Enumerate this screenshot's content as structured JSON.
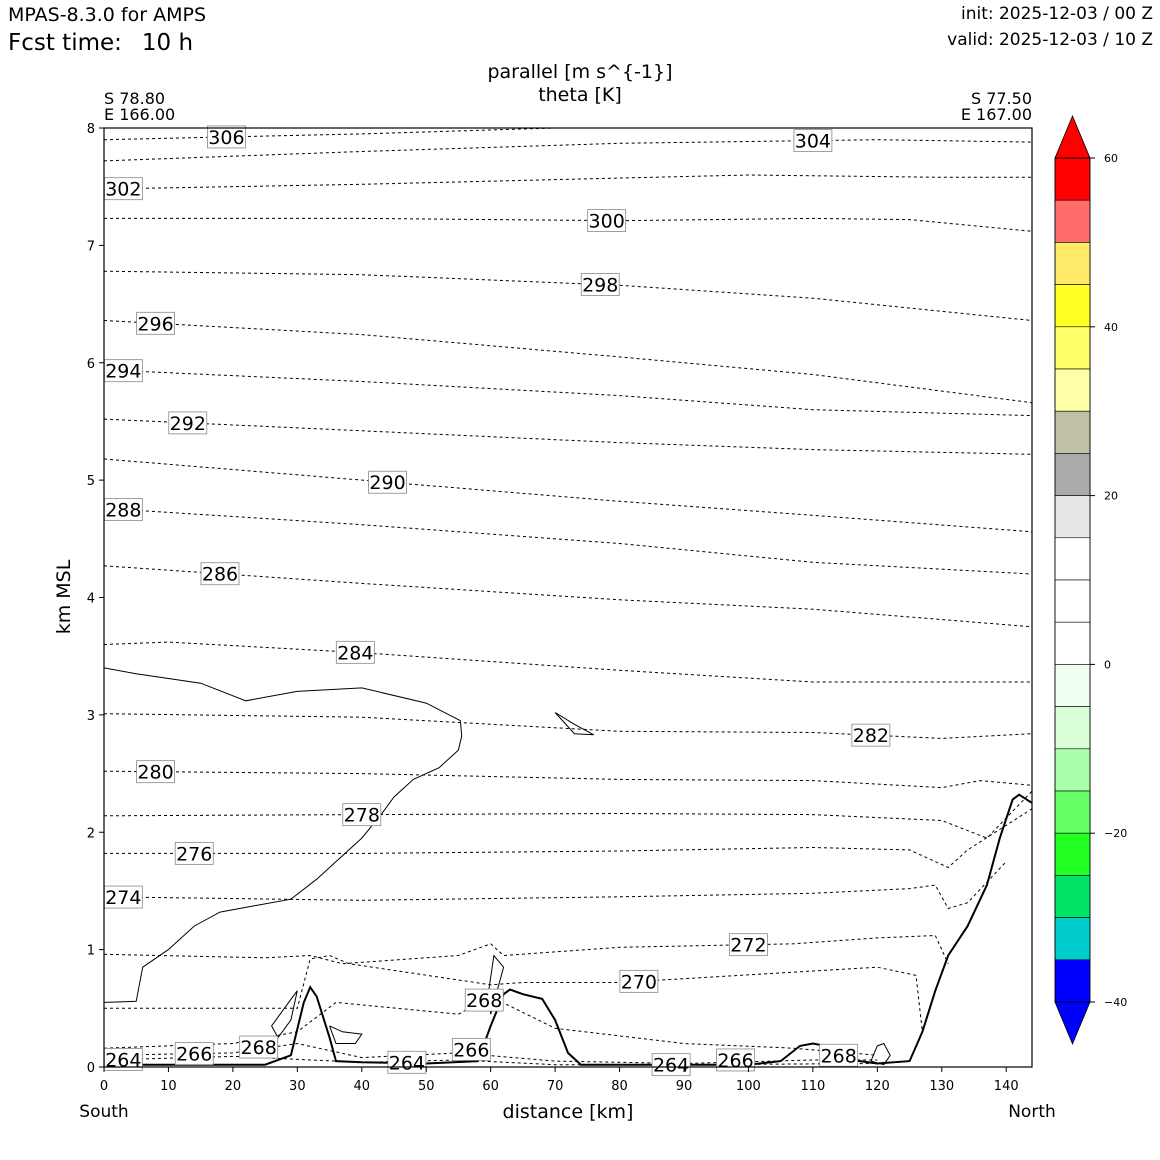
{
  "header": {
    "model": "MPAS-8.3.0 for AMPS",
    "fcst_label": "Fcst time:",
    "fcst_value": "10 h",
    "init": "init: 2025-12-03 / 00 Z",
    "valid": "valid: 2025-12-03 / 10 Z"
  },
  "chart_data": {
    "type": "contour-cross-section",
    "title": "parallel [m s^{-1}]",
    "subtitle": "theta [K]",
    "xlabel": "distance [km]",
    "ylabel": "km MSL",
    "xlim": [
      0,
      144
    ],
    "ylim": [
      0,
      8
    ],
    "x_ticks": [
      0,
      10,
      20,
      30,
      40,
      50,
      60,
      70,
      80,
      90,
      100,
      110,
      120,
      130,
      140
    ],
    "y_ticks": [
      0,
      1,
      2,
      3,
      4,
      5,
      6,
      7,
      8
    ],
    "left_end": {
      "lat": "S 78.80",
      "lon": "E 166.00",
      "direction": "South"
    },
    "right_end": {
      "lat": "S 77.50",
      "lon": "E 167.00",
      "direction": "North"
    },
    "theta_contours": [
      {
        "level": 306,
        "label_x": 19,
        "points": [
          [
            0,
            7.9
          ],
          [
            40,
            7.95
          ],
          [
            70,
            8.0
          ]
        ]
      },
      {
        "level": 304,
        "label_x": 110,
        "points": [
          [
            0,
            7.72
          ],
          [
            40,
            7.8
          ],
          [
            80,
            7.87
          ],
          [
            120,
            7.9
          ],
          [
            144,
            7.88
          ]
        ]
      },
      {
        "level": 302,
        "label_x": 3,
        "points": [
          [
            0,
            7.48
          ],
          [
            40,
            7.52
          ],
          [
            70,
            7.56
          ],
          [
            100,
            7.6
          ],
          [
            130,
            7.58
          ],
          [
            144,
            7.58
          ]
        ]
      },
      {
        "level": 300,
        "label_x": 78,
        "points": [
          [
            0,
            7.23
          ],
          [
            40,
            7.23
          ],
          [
            80,
            7.21
          ],
          [
            110,
            7.23
          ],
          [
            125,
            7.22
          ],
          [
            144,
            7.12
          ]
        ]
      },
      {
        "level": 298,
        "label_x": 77,
        "points": [
          [
            0,
            6.78
          ],
          [
            40,
            6.75
          ],
          [
            80,
            6.66
          ],
          [
            110,
            6.55
          ],
          [
            144,
            6.36
          ]
        ]
      },
      {
        "level": 296,
        "label_x": 8,
        "points": [
          [
            0,
            6.36
          ],
          [
            40,
            6.24
          ],
          [
            80,
            6.05
          ],
          [
            110,
            5.9
          ],
          [
            144,
            5.66
          ]
        ]
      },
      {
        "level": 294,
        "label_x": 3,
        "points": [
          [
            0,
            5.94
          ],
          [
            40,
            5.84
          ],
          [
            80,
            5.72
          ],
          [
            110,
            5.6
          ],
          [
            144,
            5.55
          ]
        ]
      },
      {
        "level": 292,
        "label_x": 13,
        "points": [
          [
            0,
            5.52
          ],
          [
            40,
            5.42
          ],
          [
            80,
            5.32
          ],
          [
            110,
            5.26
          ],
          [
            144,
            5.22
          ]
        ]
      },
      {
        "level": 290,
        "label_x": 44,
        "points": [
          [
            0,
            5.18
          ],
          [
            40,
            5.0
          ],
          [
            80,
            4.82
          ],
          [
            110,
            4.7
          ],
          [
            144,
            4.56
          ]
        ]
      },
      {
        "level": 288,
        "label_x": 3,
        "points": [
          [
            0,
            4.76
          ],
          [
            40,
            4.62
          ],
          [
            80,
            4.46
          ],
          [
            110,
            4.3
          ],
          [
            144,
            4.2
          ]
        ]
      },
      {
        "level": 286,
        "label_x": 18,
        "points": [
          [
            0,
            4.27
          ],
          [
            40,
            4.12
          ],
          [
            80,
            3.98
          ],
          [
            110,
            3.9
          ],
          [
            144,
            3.75
          ]
        ]
      },
      {
        "level": 284,
        "label_x": 39,
        "points": [
          [
            0,
            3.6
          ],
          [
            10,
            3.62
          ],
          [
            40,
            3.53
          ],
          [
            80,
            3.38
          ],
          [
            110,
            3.28
          ],
          [
            144,
            3.28
          ]
        ]
      },
      {
        "level": 282,
        "label_x": 119,
        "points": [
          [
            0,
            3.01
          ],
          [
            40,
            2.98
          ],
          [
            80,
            2.86
          ],
          [
            110,
            2.85
          ],
          [
            130,
            2.8
          ],
          [
            144,
            2.84
          ]
        ]
      },
      {
        "level": 280,
        "label_x": 8,
        "points": [
          [
            0,
            2.52
          ],
          [
            40,
            2.5
          ],
          [
            80,
            2.45
          ],
          [
            110,
            2.44
          ],
          [
            130,
            2.38
          ],
          [
            136,
            2.44
          ],
          [
            144,
            2.4
          ]
        ]
      },
      {
        "level": 278,
        "label_x": 40,
        "points": [
          [
            0,
            2.14
          ],
          [
            40,
            2.15
          ],
          [
            80,
            2.16
          ],
          [
            110,
            2.15
          ],
          [
            130,
            2.1
          ],
          [
            137,
            1.95
          ],
          [
            144,
            2.35
          ]
        ]
      },
      {
        "level": 276,
        "label_x": 14,
        "points": [
          [
            0,
            1.82
          ],
          [
            40,
            1.82
          ],
          [
            80,
            1.84
          ],
          [
            110,
            1.87
          ],
          [
            125,
            1.85
          ],
          [
            131,
            1.7
          ],
          [
            134,
            1.85
          ],
          [
            144,
            2.2
          ]
        ]
      },
      {
        "level": 274,
        "label_x": 3,
        "points": [
          [
            0,
            1.45
          ],
          [
            40,
            1.42
          ],
          [
            80,
            1.45
          ],
          [
            110,
            1.48
          ],
          [
            125,
            1.52
          ],
          [
            129,
            1.55
          ],
          [
            131,
            1.35
          ],
          [
            134,
            1.4
          ],
          [
            140,
            1.75
          ]
        ]
      },
      {
        "level": 272,
        "label_x": 100,
        "points": [
          [
            0,
            0.96
          ],
          [
            25,
            0.93
          ],
          [
            32,
            0.95
          ],
          [
            37,
            0.88
          ],
          [
            55,
            0.95
          ],
          [
            60,
            1.05
          ],
          [
            62,
            0.95
          ],
          [
            80,
            1.02
          ],
          [
            107,
            1.05
          ],
          [
            120,
            1.1
          ],
          [
            129,
            1.12
          ],
          [
            131,
            0.88
          ]
        ]
      },
      {
        "level": 270,
        "label_x": 83,
        "points": [
          [
            0,
            0.5
          ],
          [
            20,
            0.5
          ],
          [
            30,
            0.5
          ],
          [
            32,
            0.92
          ],
          [
            35,
            0.95
          ],
          [
            38,
            0.88
          ],
          [
            60,
            0.7
          ],
          [
            65,
            0.72
          ],
          [
            80,
            0.72
          ],
          [
            120,
            0.85
          ],
          [
            126,
            0.78
          ],
          [
            127,
            0.3
          ]
        ]
      },
      {
        "level": 268,
        "label_x": 59,
        "points": [
          [
            0,
            0.16
          ],
          [
            20,
            0.2
          ],
          [
            30,
            0.3
          ],
          [
            36,
            0.55
          ],
          [
            55,
            0.45
          ],
          [
            60,
            0.6
          ],
          [
            70,
            0.33
          ],
          [
            90,
            0.2
          ],
          [
            107,
            0.16
          ],
          [
            120,
            0.1
          ]
        ]
      },
      {
        "level": 266,
        "label_x": 14,
        "points": [
          [
            0,
            0.1
          ],
          [
            20,
            0.12
          ],
          [
            30,
            0.2
          ],
          [
            40,
            0.08
          ],
          [
            55,
            0.12
          ],
          [
            70,
            0.05
          ],
          [
            90,
            0.03
          ],
          [
            110,
            0.06
          ],
          [
            120,
            0.06
          ]
        ]
      },
      {
        "level": 264,
        "label_x": 3,
        "points": [
          [
            0,
            0.06
          ],
          [
            20,
            0.09
          ],
          [
            40,
            0.04
          ],
          [
            55,
            0.06
          ],
          [
            70,
            0.02
          ],
          [
            90,
            0.02
          ],
          [
            120,
            0.03
          ]
        ]
      }
    ],
    "extra_labels": [
      {
        "text": "268",
        "x": 24,
        "y": 0.17
      },
      {
        "text": "264",
        "x": 47,
        "y": 0.04
      },
      {
        "text": "266",
        "x": 57,
        "y": 0.15
      },
      {
        "text": "264",
        "x": 88,
        "y": 0.02
      },
      {
        "text": "266",
        "x": 98,
        "y": 0.06
      },
      {
        "text": "268",
        "x": 114,
        "y": 0.1
      }
    ],
    "terrain": [
      [
        0,
        0.02
      ],
      [
        25,
        0.02
      ],
      [
        29,
        0.1
      ],
      [
        31,
        0.55
      ],
      [
        32,
        0.68
      ],
      [
        33,
        0.6
      ],
      [
        35,
        0.25
      ],
      [
        36,
        0.05
      ],
      [
        40,
        0.04
      ],
      [
        50,
        0.03
      ],
      [
        58,
        0.05
      ],
      [
        60,
        0.35
      ],
      [
        62,
        0.62
      ],
      [
        63,
        0.66
      ],
      [
        65,
        0.62
      ],
      [
        68,
        0.58
      ],
      [
        70,
        0.4
      ],
      [
        72,
        0.12
      ],
      [
        74,
        0.02
      ],
      [
        100,
        0.02
      ],
      [
        105,
        0.05
      ],
      [
        108,
        0.18
      ],
      [
        110,
        0.2
      ],
      [
        112,
        0.18
      ],
      [
        116,
        0.06
      ],
      [
        120,
        0.03
      ],
      [
        125,
        0.05
      ],
      [
        127,
        0.3
      ],
      [
        129,
        0.65
      ],
      [
        131,
        0.95
      ],
      [
        134,
        1.2
      ],
      [
        137,
        1.55
      ],
      [
        139,
        1.95
      ],
      [
        141,
        2.28
      ],
      [
        142,
        2.32
      ],
      [
        144,
        2.25
      ]
    ],
    "wind_zero_contour": [
      [
        0,
        0.55
      ],
      [
        5,
        0.56
      ],
      [
        6,
        0.85
      ],
      [
        10,
        1.0
      ],
      [
        14,
        1.2
      ],
      [
        18,
        1.32
      ],
      [
        24,
        1.38
      ],
      [
        29,
        1.43
      ],
      [
        33,
        1.6
      ],
      [
        36,
        1.75
      ],
      [
        40,
        1.95
      ],
      [
        43,
        2.15
      ],
      [
        45,
        2.3
      ],
      [
        48,
        2.45
      ],
      [
        52,
        2.55
      ],
      [
        55,
        2.7
      ],
      [
        55.5,
        2.82
      ],
      [
        55.3,
        2.95
      ],
      [
        50,
        3.1
      ],
      [
        40,
        3.23
      ],
      [
        30,
        3.2
      ],
      [
        22,
        3.12
      ],
      [
        15,
        3.27
      ],
      [
        5,
        3.35
      ],
      [
        0,
        3.4
      ]
    ],
    "wind_small_contours": [
      [
        [
          70,
          3.02
        ],
        [
          72,
          2.9
        ],
        [
          73,
          2.84
        ],
        [
          76,
          2.83
        ],
        [
          73,
          2.92
        ],
        [
          70,
          3.02
        ]
      ],
      [
        [
          60,
          0.45
        ],
        [
          62,
          0.85
        ],
        [
          60.5,
          0.95
        ],
        [
          59.7,
          0.65
        ],
        [
          60,
          0.45
        ]
      ],
      [
        [
          30,
          0.65
        ],
        [
          29,
          0.4
        ],
        [
          27,
          0.25
        ],
        [
          26,
          0.35
        ],
        [
          28,
          0.5
        ],
        [
          30,
          0.65
        ]
      ],
      [
        [
          35,
          0.35
        ],
        [
          37,
          0.3
        ],
        [
          40,
          0.28
        ],
        [
          39,
          0.2
        ],
        [
          36,
          0.2
        ],
        [
          35,
          0.35
        ]
      ],
      [
        [
          119,
          0.05
        ],
        [
          120,
          0.18
        ],
        [
          121,
          0.2
        ],
        [
          122,
          0.1
        ],
        [
          121,
          0.02
        ],
        [
          119,
          0.05
        ]
      ]
    ],
    "colorbar": {
      "ticks": [
        60,
        40,
        20,
        0,
        -20,
        -40
      ],
      "tick_labels": [
        "60",
        "40",
        "20",
        "0",
        "−20",
        "−40"
      ],
      "levels": [
        {
          "range": [
            55,
            60
          ],
          "color": "#ff0000"
        },
        {
          "range": [
            50,
            55
          ],
          "color": "#ff6c6c"
        },
        {
          "range": [
            45,
            50
          ],
          "color": "#ffe968"
        },
        {
          "range": [
            40,
            45
          ],
          "color": "#ffff22"
        },
        {
          "range": [
            35,
            40
          ],
          "color": "#ffff66"
        },
        {
          "range": [
            30,
            35
          ],
          "color": "#ffffaa"
        },
        {
          "range": [
            25,
            30
          ],
          "color": "#c0c0a4"
        },
        {
          "range": [
            20,
            25
          ],
          "color": "#aaaaaa"
        },
        {
          "range": [
            15,
            20
          ],
          "color": "#e6e6e6"
        },
        {
          "range": [
            10,
            15
          ],
          "color": "#ffffff"
        },
        {
          "range": [
            5,
            10
          ],
          "color": "#ffffff"
        },
        {
          "range": [
            0,
            5
          ],
          "color": "#ffffff"
        },
        {
          "range": [
            -5,
            0
          ],
          "color": "#f0fff0"
        },
        {
          "range": [
            -10,
            -5
          ],
          "color": "#d8ffd8"
        },
        {
          "range": [
            -15,
            -10
          ],
          "color": "#aaffaa"
        },
        {
          "range": [
            -20,
            -15
          ],
          "color": "#66ff66"
        },
        {
          "range": [
            -25,
            -20
          ],
          "color": "#22ff22"
        },
        {
          "range": [
            -30,
            -25
          ],
          "color": "#00e566"
        },
        {
          "range": [
            -35,
            -30
          ],
          "color": "#00cccc"
        },
        {
          "range": [
            -40,
            -35
          ],
          "color": "#0000ff"
        }
      ],
      "over_color": "#ff0000",
      "under_color": "#0000ff"
    }
  }
}
